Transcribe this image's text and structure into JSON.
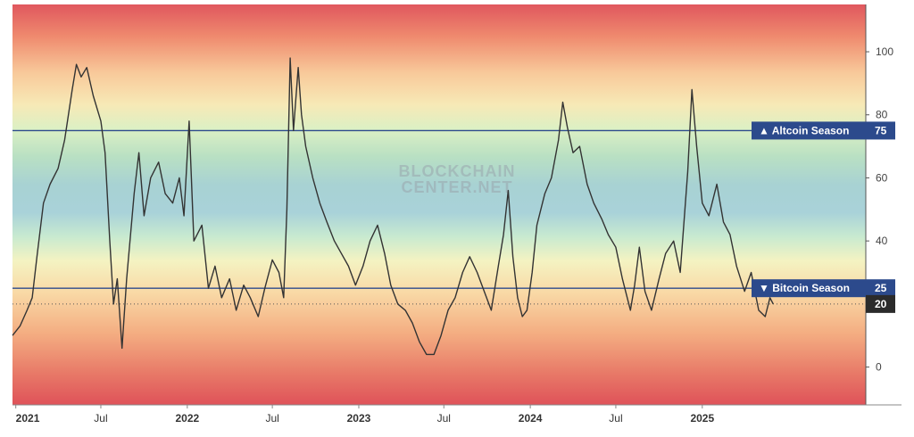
{
  "chart_data": {
    "type": "line",
    "title": "",
    "xlabel": "",
    "ylabel": "",
    "ylim": [
      -12,
      115
    ],
    "y_ticks": [
      0,
      20,
      40,
      60,
      80,
      100
    ],
    "x_ticks": [
      {
        "label": "2021",
        "date": "2021-01-01",
        "year": true
      },
      {
        "label": "Jul",
        "date": "2021-07-01",
        "year": false
      },
      {
        "label": "2022",
        "date": "2022-01-01",
        "year": true
      },
      {
        "label": "Jul",
        "date": "2022-07-01",
        "year": false
      },
      {
        "label": "2023",
        "date": "2023-01-01",
        "year": true
      },
      {
        "label": "Jul",
        "date": "2023-07-01",
        "year": false
      },
      {
        "label": "2024",
        "date": "2024-01-01",
        "year": true
      },
      {
        "label": "Jul",
        "date": "2024-07-01",
        "year": false
      },
      {
        "label": "2025",
        "date": "2025-01-01",
        "year": true
      }
    ],
    "xlim": [
      "2020-12-25",
      "2025-12-15"
    ],
    "reference_lines": [
      {
        "label": "▲ Altcoin Season",
        "value": 75,
        "value_label": "75",
        "color": "#2c4a8c"
      },
      {
        "label": "▼ Bitcoin Season",
        "value": 25,
        "value_label": "25",
        "color": "#2c4a8c"
      }
    ],
    "current_value": {
      "value": 20,
      "label": "20"
    },
    "watermark": [
      "BLOCKCHAIN",
      "CENTER.NET"
    ],
    "series": [
      {
        "color": "#333333",
        "points": [
          [
            "2020-12-25",
            10
          ],
          [
            "2021-01-10",
            13
          ],
          [
            "2021-01-25",
            18
          ],
          [
            "2021-02-05",
            22
          ],
          [
            "2021-02-15",
            35
          ],
          [
            "2021-03-01",
            52
          ],
          [
            "2021-03-15",
            58
          ],
          [
            "2021-04-01",
            63
          ],
          [
            "2021-04-15",
            72
          ],
          [
            "2021-05-01",
            88
          ],
          [
            "2021-05-10",
            96
          ],
          [
            "2021-05-20",
            92
          ],
          [
            "2021-06-01",
            95
          ],
          [
            "2021-06-15",
            86
          ],
          [
            "2021-07-01",
            78
          ],
          [
            "2021-07-10",
            68
          ],
          [
            "2021-07-20",
            40
          ],
          [
            "2021-07-28",
            20
          ],
          [
            "2021-08-05",
            28
          ],
          [
            "2021-08-15",
            6
          ],
          [
            "2021-08-25",
            28
          ],
          [
            "2021-09-10",
            55
          ],
          [
            "2021-09-20",
            68
          ],
          [
            "2021-10-01",
            48
          ],
          [
            "2021-10-15",
            60
          ],
          [
            "2021-11-01",
            65
          ],
          [
            "2021-11-15",
            55
          ],
          [
            "2021-12-01",
            52
          ],
          [
            "2021-12-15",
            60
          ],
          [
            "2021-12-25",
            48
          ],
          [
            "2022-01-05",
            78
          ],
          [
            "2022-01-15",
            40
          ],
          [
            "2022-02-01",
            45
          ],
          [
            "2022-02-15",
            25
          ],
          [
            "2022-03-01",
            32
          ],
          [
            "2022-03-15",
            22
          ],
          [
            "2022-04-01",
            28
          ],
          [
            "2022-04-15",
            18
          ],
          [
            "2022-05-01",
            26
          ],
          [
            "2022-05-15",
            22
          ],
          [
            "2022-06-01",
            16
          ],
          [
            "2022-06-15",
            25
          ],
          [
            "2022-07-01",
            34
          ],
          [
            "2022-07-15",
            30
          ],
          [
            "2022-07-25",
            22
          ],
          [
            "2022-08-01",
            50
          ],
          [
            "2022-08-08",
            98
          ],
          [
            "2022-08-15",
            75
          ],
          [
            "2022-08-25",
            95
          ],
          [
            "2022-09-01",
            80
          ],
          [
            "2022-09-10",
            70
          ],
          [
            "2022-09-25",
            60
          ],
          [
            "2022-10-10",
            52
          ],
          [
            "2022-10-25",
            46
          ],
          [
            "2022-11-10",
            40
          ],
          [
            "2022-11-25",
            36
          ],
          [
            "2022-12-10",
            32
          ],
          [
            "2022-12-25",
            26
          ],
          [
            "2023-01-10",
            32
          ],
          [
            "2023-01-25",
            40
          ],
          [
            "2023-02-10",
            45
          ],
          [
            "2023-02-25",
            36
          ],
          [
            "2023-03-10",
            26
          ],
          [
            "2023-03-25",
            20
          ],
          [
            "2023-04-10",
            18
          ],
          [
            "2023-04-25",
            14
          ],
          [
            "2023-05-10",
            8
          ],
          [
            "2023-05-25",
            4
          ],
          [
            "2023-06-10",
            4
          ],
          [
            "2023-06-25",
            10
          ],
          [
            "2023-07-10",
            18
          ],
          [
            "2023-07-25",
            22
          ],
          [
            "2023-08-10",
            30
          ],
          [
            "2023-08-25",
            35
          ],
          [
            "2023-09-10",
            30
          ],
          [
            "2023-09-25",
            24
          ],
          [
            "2023-10-10",
            18
          ],
          [
            "2023-10-25",
            32
          ],
          [
            "2023-11-05",
            42
          ],
          [
            "2023-11-15",
            56
          ],
          [
            "2023-11-25",
            35
          ],
          [
            "2023-12-05",
            22
          ],
          [
            "2023-12-15",
            16
          ],
          [
            "2023-12-25",
            18
          ],
          [
            "2024-01-05",
            30
          ],
          [
            "2024-01-15",
            45
          ],
          [
            "2024-02-01",
            55
          ],
          [
            "2024-02-15",
            60
          ],
          [
            "2024-03-01",
            72
          ],
          [
            "2024-03-10",
            84
          ],
          [
            "2024-03-20",
            76
          ],
          [
            "2024-04-01",
            68
          ],
          [
            "2024-04-15",
            70
          ],
          [
            "2024-05-01",
            58
          ],
          [
            "2024-05-15",
            52
          ],
          [
            "2024-06-01",
            47
          ],
          [
            "2024-06-15",
            42
          ],
          [
            "2024-07-01",
            38
          ],
          [
            "2024-07-15",
            28
          ],
          [
            "2024-08-01",
            18
          ],
          [
            "2024-08-10",
            26
          ],
          [
            "2024-08-20",
            38
          ],
          [
            "2024-09-01",
            24
          ],
          [
            "2024-09-15",
            18
          ],
          [
            "2024-10-01",
            28
          ],
          [
            "2024-10-15",
            36
          ],
          [
            "2024-11-01",
            40
          ],
          [
            "2024-11-15",
            30
          ],
          [
            "2024-12-01",
            62
          ],
          [
            "2024-12-10",
            88
          ],
          [
            "2024-12-20",
            70
          ],
          [
            "2025-01-01",
            52
          ],
          [
            "2025-01-15",
            48
          ],
          [
            "2025-02-01",
            58
          ],
          [
            "2025-02-15",
            46
          ],
          [
            "2025-03-01",
            42
          ],
          [
            "2025-03-15",
            32
          ],
          [
            "2025-04-01",
            24
          ],
          [
            "2025-04-15",
            30
          ],
          [
            "2025-05-01",
            18
          ],
          [
            "2025-05-15",
            16
          ],
          [
            "2025-05-25",
            22
          ],
          [
            "2025-06-01",
            20
          ]
        ]
      }
    ]
  }
}
